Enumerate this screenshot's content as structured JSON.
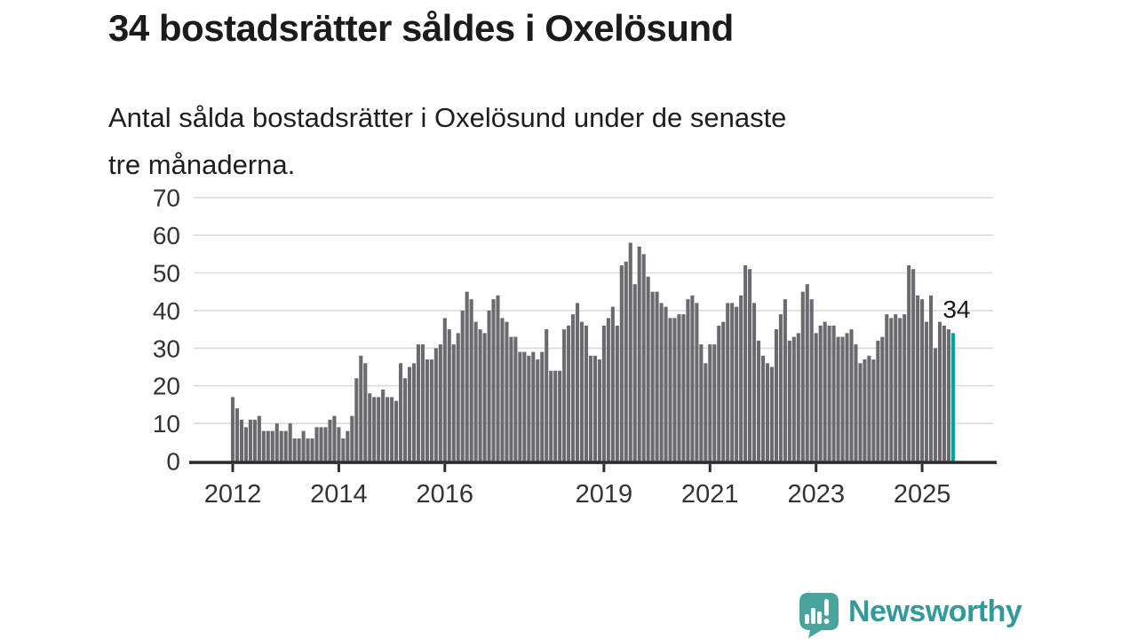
{
  "header": {
    "title": "34 bostadsrätter såldes i Oxelösund",
    "subtitle_lines": [
      "Antal sålda bostadsrätter i Oxelösund under de senaste",
      "tre månaderna."
    ]
  },
  "footer": {
    "brand": "Newsworthy"
  },
  "colors": {
    "bar": "#6a6a6f",
    "highlight": "#00a0a0",
    "grid": "#dcdcdc",
    "axis": "#2e2e2e",
    "axis_label": "#333333",
    "annotation_text": "#1a1a1a",
    "logo_bubble": "#4aa49e",
    "logo_text": "#33999a"
  },
  "chart_data": {
    "type": "bar",
    "title": "Antal sålda bostadsrätter i Oxelösund under de senaste tre månaderna",
    "x_start": "2012-01",
    "x_frequency": "monthly",
    "xlabel": "",
    "ylabel": "",
    "ylim": [
      0,
      70
    ],
    "grid": true,
    "y_ticks": [
      0,
      10,
      20,
      30,
      40,
      50,
      60,
      70
    ],
    "x_ticks": [
      {
        "label": "2012",
        "month_index": 0
      },
      {
        "label": "2014",
        "month_index": 24
      },
      {
        "label": "2016",
        "month_index": 48
      },
      {
        "label": "2019",
        "month_index": 84
      },
      {
        "label": "2021",
        "month_index": 108
      },
      {
        "label": "2023",
        "month_index": 132
      },
      {
        "label": "2025",
        "month_index": 156
      }
    ],
    "values": [
      17,
      14,
      11,
      9,
      11,
      11,
      12,
      8,
      8,
      8,
      10,
      8,
      8,
      10,
      6,
      6,
      8,
      6,
      6,
      9,
      9,
      9,
      11,
      12,
      9,
      6,
      8,
      12,
      22,
      28,
      26,
      18,
      17,
      17,
      19,
      17,
      17,
      16,
      26,
      22,
      25,
      26,
      31,
      31,
      27,
      27,
      30,
      31,
      38,
      35,
      31,
      34,
      40,
      45,
      43,
      37,
      35,
      34,
      40,
      43,
      44,
      38,
      37,
      33,
      33,
      29,
      29,
      28,
      29,
      27,
      29,
      35,
      24,
      24,
      24,
      35,
      36,
      39,
      42,
      37,
      36,
      28,
      28,
      27,
      36,
      38,
      41,
      36,
      52,
      53,
      58,
      47,
      57,
      55,
      49,
      45,
      45,
      42,
      41,
      38,
      38,
      39,
      39,
      43,
      44,
      42,
      31,
      26,
      31,
      31,
      36,
      37,
      42,
      42,
      41,
      44,
      52,
      51,
      42,
      32,
      28,
      26,
      25,
      35,
      39,
      43,
      32,
      33,
      34,
      45,
      47,
      43,
      34,
      36,
      37,
      36,
      36,
      33,
      33,
      34,
      35,
      31,
      26,
      27,
      28,
      27,
      32,
      33,
      39,
      38,
      39,
      38,
      39,
      52,
      51,
      44,
      43,
      37,
      44,
      30,
      37,
      36,
      35,
      34
    ],
    "highlight_last_bar": {
      "value": 34,
      "label": "34"
    }
  }
}
